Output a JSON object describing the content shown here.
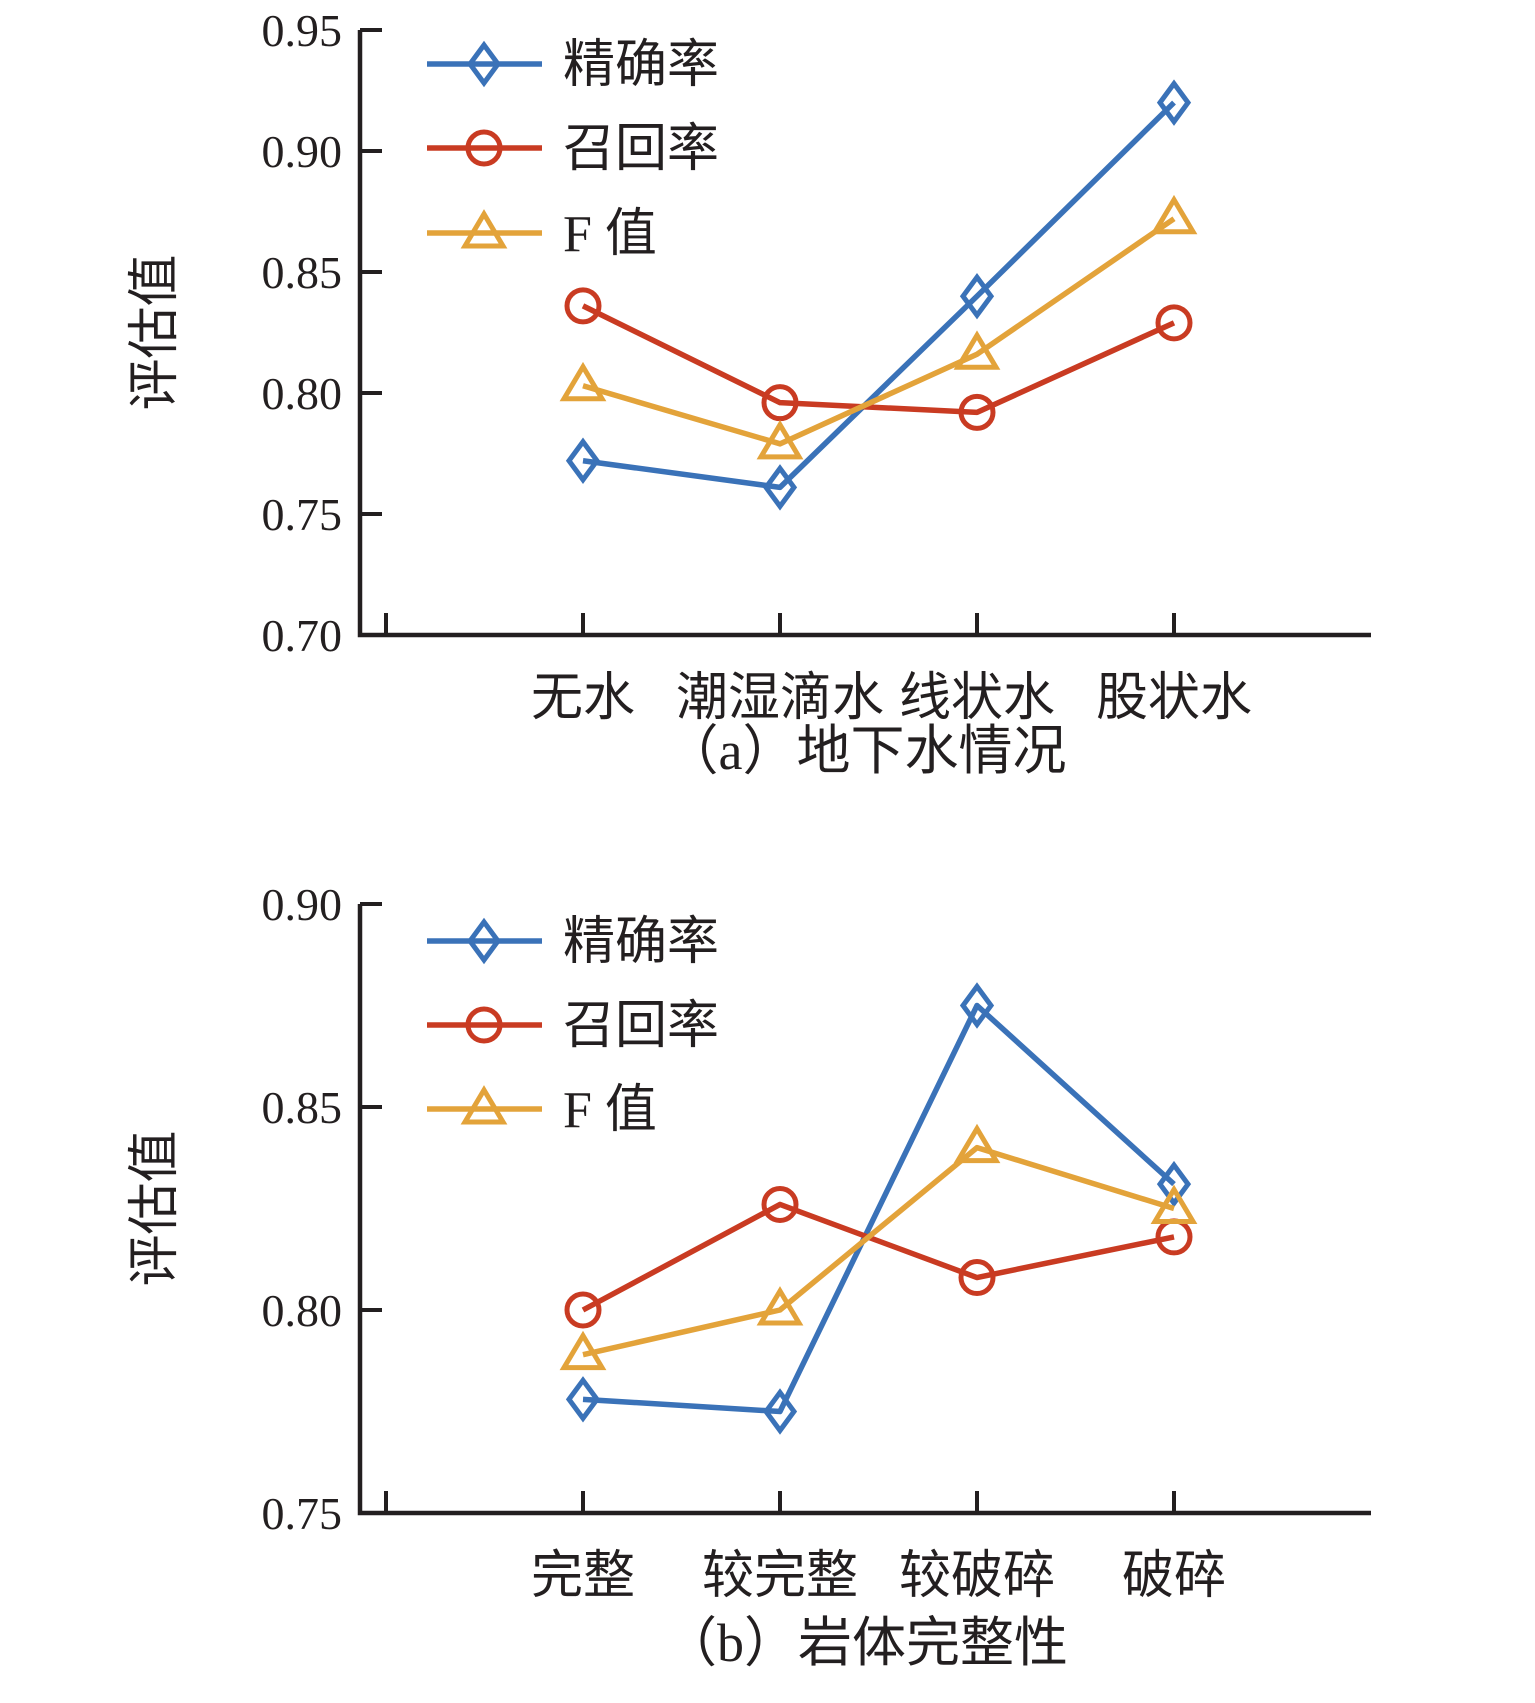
{
  "figure": {
    "description_visible_text_only": "two stacked line charts sharing legend and y-axis title",
    "axis_color": "#231F20",
    "background": "#FFFFFF"
  },
  "chart_data": [
    {
      "type": "line",
      "caption": "（a）地下水情况",
      "ylabel": "评估值",
      "categories": [
        "无水",
        "潮湿滴水",
        "线状水",
        "股状水"
      ],
      "ylim": [
        0.7,
        0.95
      ],
      "yticks": [
        0.7,
        0.75,
        0.8,
        0.85,
        0.9,
        0.95
      ],
      "grid": false,
      "legend_position": "inside-top-left",
      "legend_labels": [
        "精确率",
        "召回率",
        "F 值"
      ],
      "series": [
        {
          "name": "精确率",
          "marker": "diamond",
          "color": "#3A72B8",
          "values": [
            0.772,
            0.761,
            0.84,
            0.92
          ]
        },
        {
          "name": "召回率",
          "marker": "circle",
          "color": "#C93B22",
          "values": [
            0.836,
            0.796,
            0.792,
            0.829
          ]
        },
        {
          "name": "F 值",
          "marker": "triangle",
          "color": "#E3A33A",
          "values": [
            0.803,
            0.779,
            0.816,
            0.872
          ]
        }
      ]
    },
    {
      "type": "line",
      "caption": "（b）岩体完整性",
      "ylabel": "评估值",
      "categories": [
        "完整",
        "较完整",
        "较破碎",
        "破碎"
      ],
      "ylim": [
        0.75,
        0.9
      ],
      "yticks": [
        0.75,
        0.8,
        0.85,
        0.9
      ],
      "grid": false,
      "legend_position": "inside-top-left",
      "legend_labels": [
        "精确率",
        "召回率",
        "F 值"
      ],
      "series": [
        {
          "name": "精确率",
          "marker": "diamond",
          "color": "#3A72B8",
          "values": [
            0.778,
            0.775,
            0.875,
            0.831
          ]
        },
        {
          "name": "召回率",
          "marker": "circle",
          "color": "#C93B22",
          "values": [
            0.8,
            0.826,
            0.808,
            0.818
          ]
        },
        {
          "name": "F 值",
          "marker": "triangle",
          "color": "#E3A33A",
          "values": [
            0.789,
            0.8,
            0.84,
            0.825
          ]
        }
      ]
    }
  ]
}
